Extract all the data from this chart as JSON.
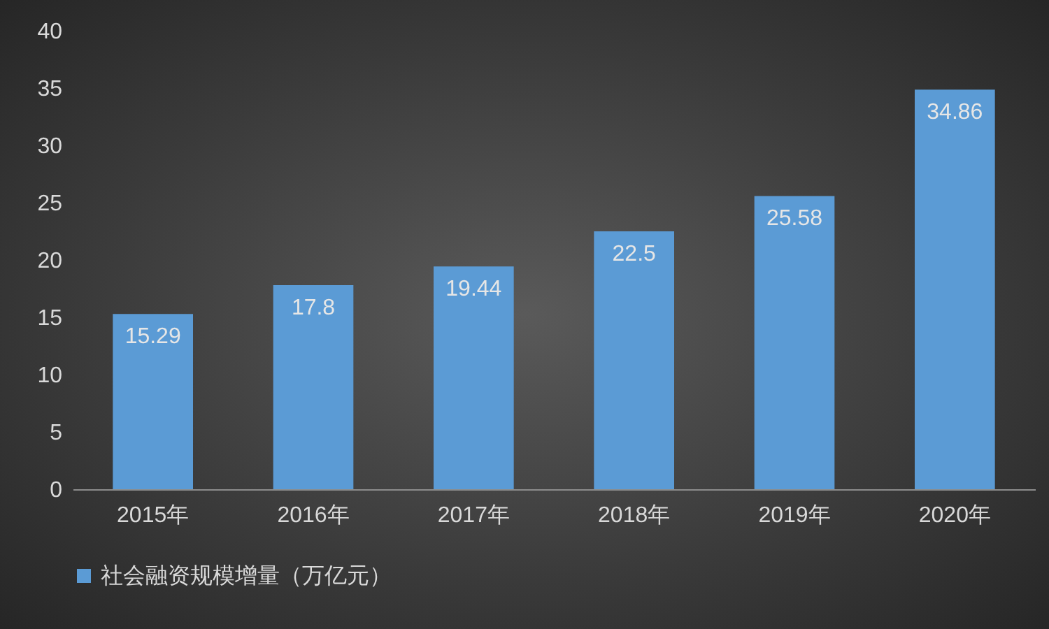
{
  "chart_data": {
    "type": "bar",
    "categories": [
      "2015年",
      "2016年",
      "2017年",
      "2018年",
      "2019年",
      "2020年"
    ],
    "series": [
      {
        "name": "社会融资规模增量（万亿元）",
        "color": "#5b9bd5",
        "values": [
          15.29,
          17.8,
          19.44,
          22.5,
          25.58,
          34.86
        ]
      }
    ],
    "ylim": [
      0,
      40
    ],
    "yticks": [
      0,
      5,
      10,
      15,
      20,
      25,
      30,
      35,
      40
    ],
    "data_labels": true,
    "legend": "bottom"
  }
}
